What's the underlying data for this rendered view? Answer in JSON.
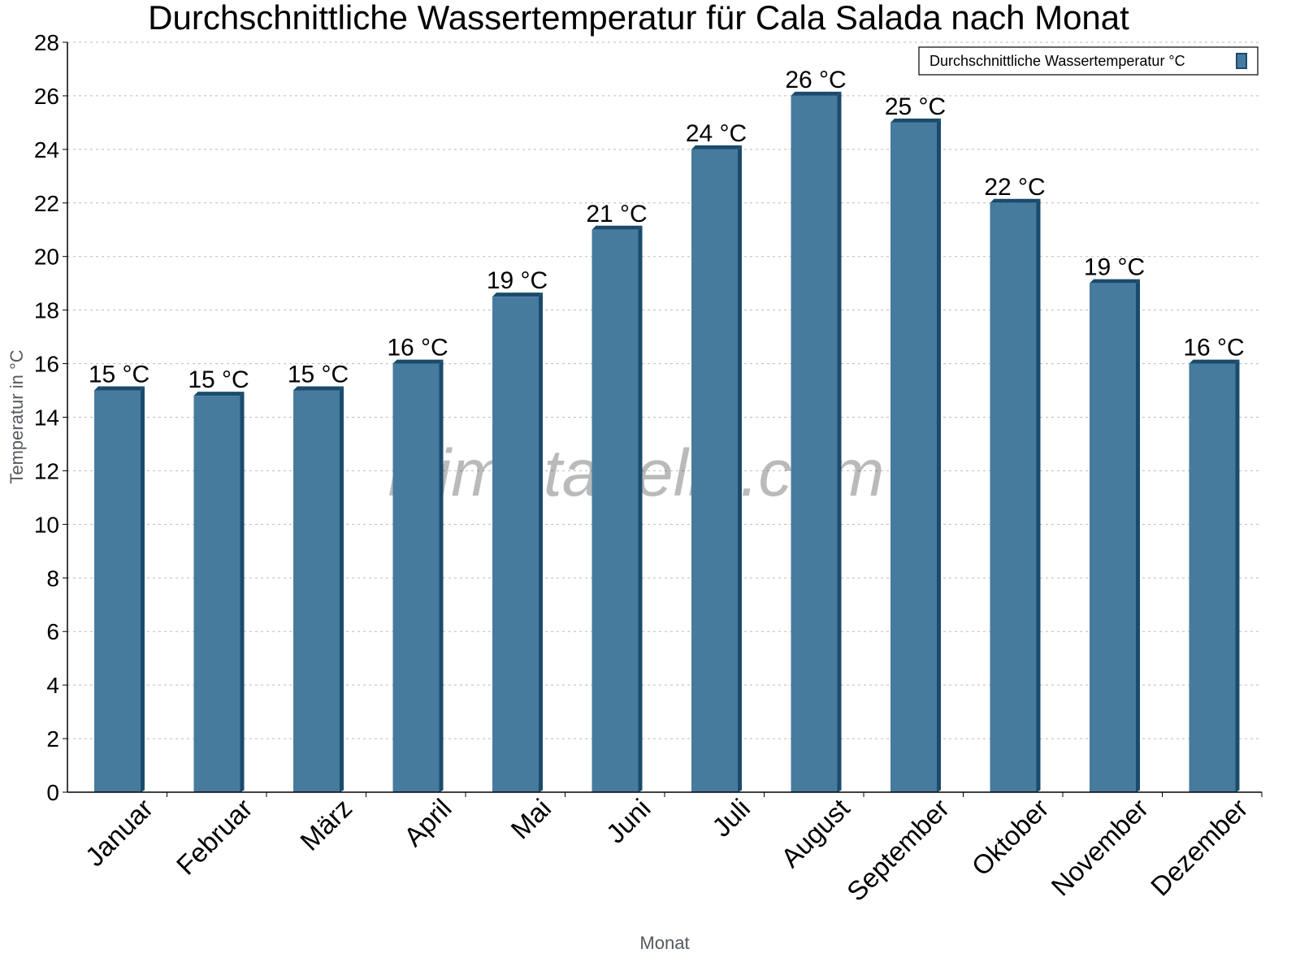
{
  "chart_data": {
    "type": "bar",
    "title": "Durchschnittliche Wassertemperatur für Cala Salada nach Monat",
    "xlabel": "Monat",
    "ylabel": "Temperatur in °C",
    "ylim": [
      0,
      28
    ],
    "yticks": [
      0,
      2,
      4,
      6,
      8,
      10,
      12,
      14,
      16,
      18,
      20,
      22,
      24,
      26,
      28
    ],
    "grid": true,
    "legend_position": "top-right",
    "categories": [
      "Januar",
      "Februar",
      "März",
      "April",
      "Mai",
      "Juni",
      "Juli",
      "August",
      "September",
      "Oktober",
      "November",
      "Dezember"
    ],
    "series": [
      {
        "name": "Durchschnittliche Wassertemperatur °C",
        "color": "#467b9e",
        "side_color": "#1a4b6c",
        "values": [
          15,
          14.8,
          15,
          16,
          18.5,
          21,
          24,
          26,
          25,
          22,
          19,
          16
        ],
        "data_labels": [
          "15 °C",
          "15 °C",
          "15 °C",
          "16 °C",
          "19 °C",
          "21 °C",
          "24 °C",
          "26 °C",
          "25 °C",
          "22 °C",
          "19 °C",
          "16 °C"
        ]
      }
    ],
    "watermark": "klimatabelle.com"
  }
}
